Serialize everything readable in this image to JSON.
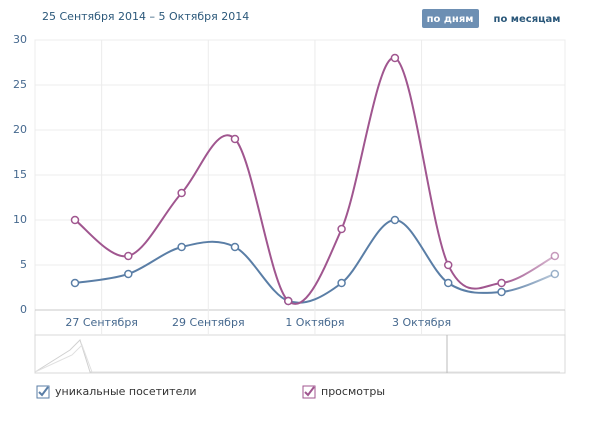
{
  "header": {
    "date_range": "25 Сентября 2014 – 5 Октября 2014",
    "buttons": [
      "по дням",
      "по месяцам"
    ]
  },
  "chart_data": {
    "type": "line",
    "x": [
      0,
      1,
      2,
      3,
      4,
      5,
      6,
      7,
      8,
      9
    ],
    "xlim": [
      -0.75,
      9.19
    ],
    "xticks": [
      {
        "value": 0.5,
        "label": "27 Сентября"
      },
      {
        "value": 2.5,
        "label": "29 Сентября"
      },
      {
        "value": 4.5,
        "label": "1 Октября"
      },
      {
        "value": 6.5,
        "label": "3 Октября"
      }
    ],
    "ylim": [
      0,
      30
    ],
    "yticks": [
      0,
      5,
      10,
      15,
      20,
      25,
      30
    ],
    "grid": true,
    "series": [
      {
        "name": "уникальные посетители",
        "color": "#5a7ea6",
        "values": [
          3,
          4,
          7,
          7,
          1,
          3,
          10,
          3,
          2,
          4
        ]
      },
      {
        "name": "просмотры",
        "color": "#a0568f",
        "values": [
          10,
          6,
          13,
          19,
          1,
          9,
          28,
          5,
          3,
          6
        ]
      }
    ]
  }
}
